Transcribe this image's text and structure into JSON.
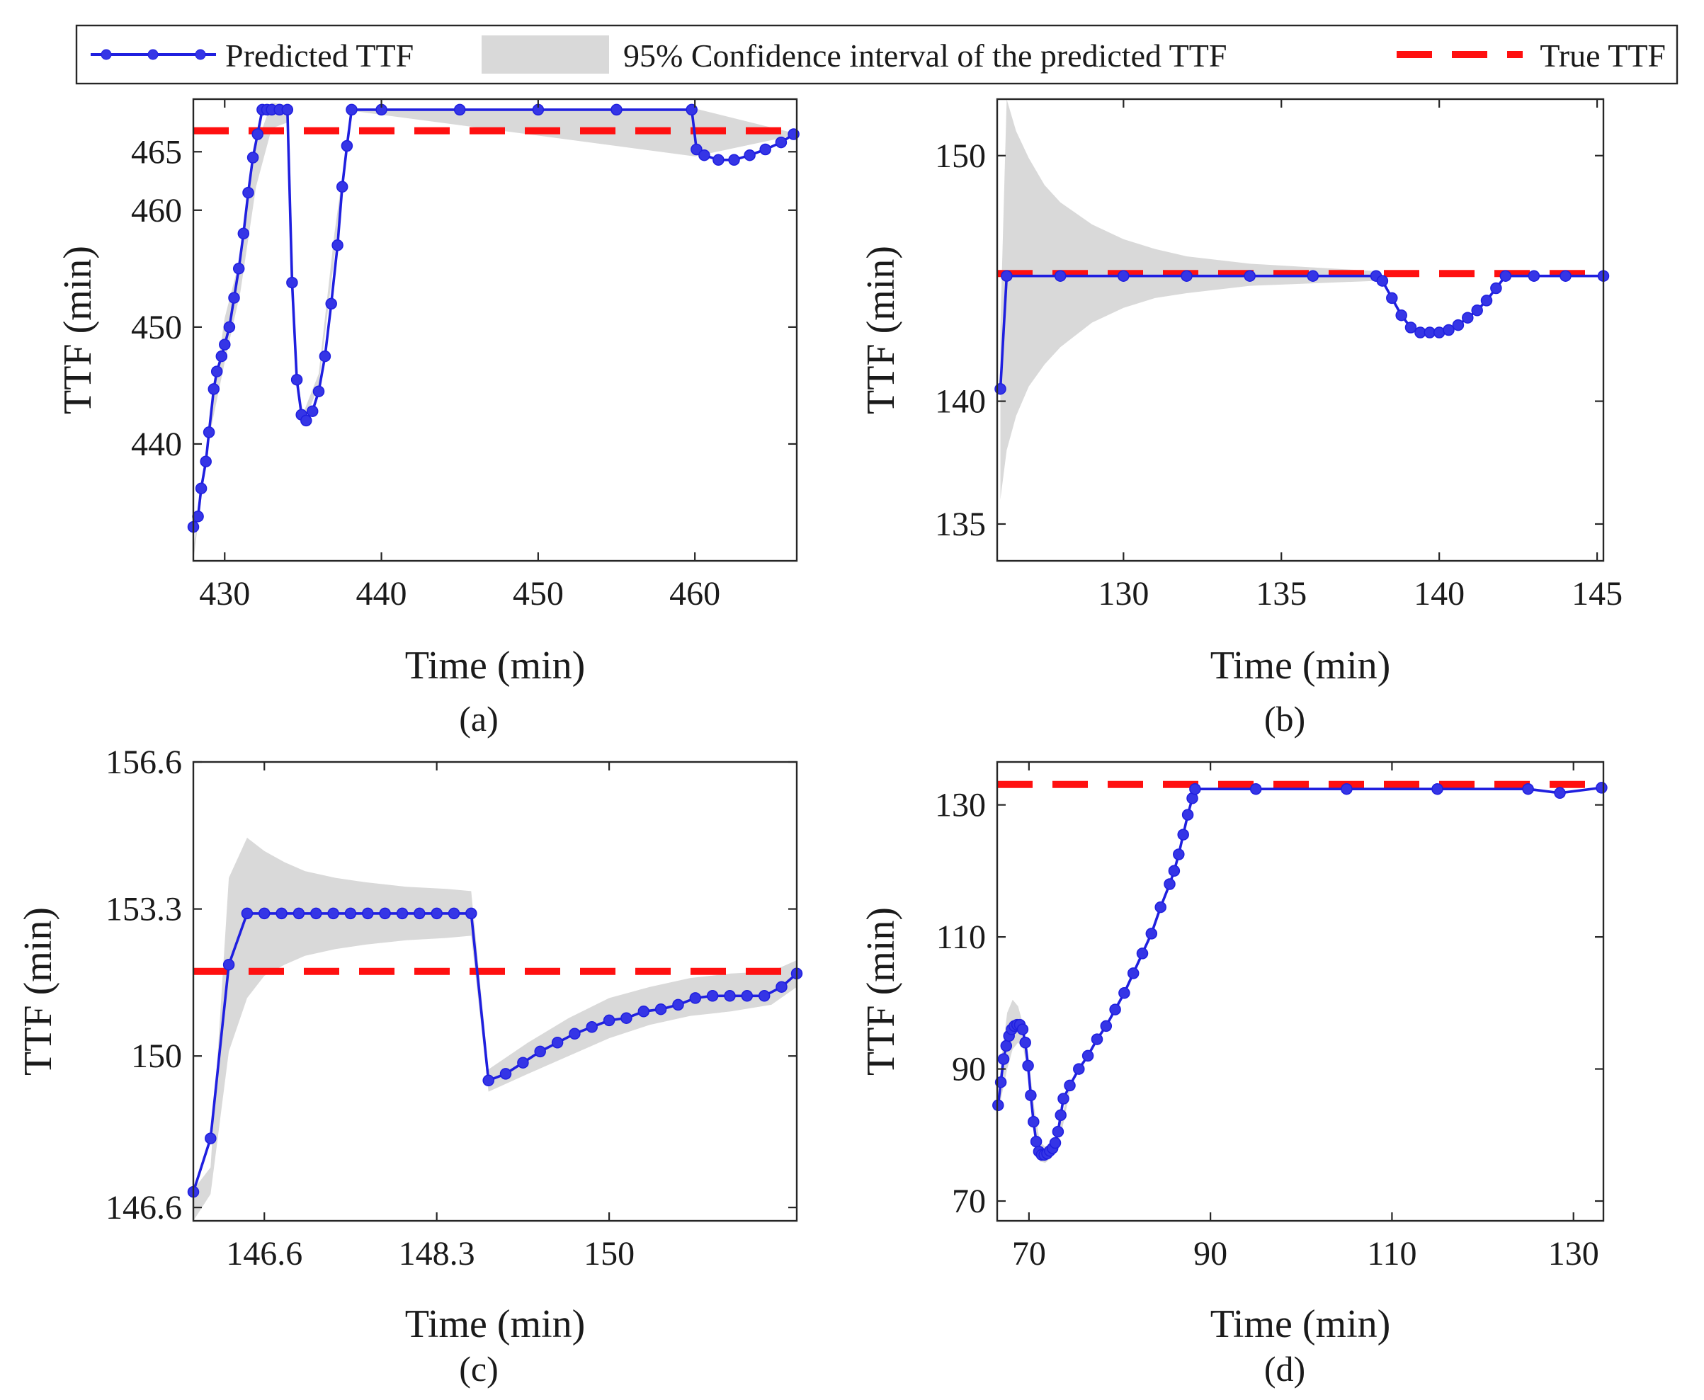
{
  "colors": {
    "predicted": "#1f1fdf",
    "marker_fill": "#3535e6",
    "band": "#d9d9d9",
    "true": "#ff1010",
    "axis": "#262626",
    "text": "#1a1a1a"
  },
  "legend": {
    "predicted": "Predicted TTF",
    "band": "95% Confidence interval of the predicted TTF",
    "true": "True TTF"
  },
  "chart_data": [
    {
      "type": "line",
      "subtitle": "(a)",
      "xlabel": "Time (min)",
      "ylabel": "TTF (min)",
      "xlim": [
        428,
        466.5
      ],
      "ylim": [
        430,
        469.5
      ],
      "xticks": [
        430,
        440,
        450,
        460
      ],
      "yticks": [
        440,
        450,
        460,
        465
      ],
      "true_ttf": 466.8,
      "series": [
        {
          "name": "Predicted TTF",
          "x": [
            428,
            428.3,
            428.5,
            428.8,
            429,
            429.3,
            429.5,
            429.8,
            430,
            430.3,
            430.6,
            430.9,
            431.2,
            431.5,
            431.8,
            432.1,
            432.4,
            432.7,
            433,
            433.5,
            434,
            434.3,
            434.6,
            434.9,
            435.2,
            435.6,
            436,
            436.4,
            436.8,
            437.2,
            437.5,
            437.8,
            438.1,
            440,
            445,
            450,
            455,
            459.8,
            460.1,
            460.6,
            461.5,
            462.5,
            463.5,
            464.5,
            465.5,
            466.3
          ],
          "y": [
            432.9,
            433.8,
            436.2,
            438.5,
            441,
            444.7,
            446.2,
            447.5,
            448.5,
            450,
            452.5,
            455,
            458,
            461.5,
            464.5,
            466.5,
            468.6,
            468.6,
            468.6,
            468.6,
            468.6,
            453.8,
            445.5,
            442.5,
            442,
            442.8,
            444.5,
            447.5,
            452,
            457,
            462,
            465.5,
            468.6,
            468.6,
            468.6,
            468.6,
            468.6,
            468.6,
            465.2,
            464.7,
            464.3,
            464.3,
            464.7,
            465.2,
            465.8,
            466.5
          ]
        }
      ],
      "band": {
        "x": [
          428,
          429,
          430,
          431,
          432,
          433,
          434,
          434.6,
          435,
          436,
          437,
          438.1,
          460,
          466.3
        ],
        "upper": [
          431,
          441.5,
          450.8,
          456,
          465.5,
          469.2,
          469,
          446,
          442.6,
          446,
          458,
          468.7,
          468.7,
          466.6
        ],
        "lower": [
          429.8,
          440.5,
          447,
          453,
          462,
          467,
          467.5,
          444.5,
          441.6,
          445,
          456,
          468.5,
          464.6,
          466.4
        ]
      }
    },
    {
      "type": "line",
      "subtitle": "(b)",
      "xlabel": "Time (min)",
      "ylabel": "TTF (min)",
      "xlim": [
        126,
        145.2
      ],
      "ylim": [
        133.5,
        152.3
      ],
      "xticks": [
        130,
        135,
        140,
        145
      ],
      "yticks": [
        135,
        140,
        150
      ],
      "true_ttf": 145.2,
      "series": [
        {
          "name": "Predicted TTF",
          "x": [
            126.1,
            126.3,
            128,
            130,
            132,
            134,
            136,
            138,
            138.2,
            138.5,
            138.8,
            139.1,
            139.4,
            139.7,
            140,
            140.3,
            140.6,
            140.9,
            141.2,
            141.5,
            141.8,
            142.1,
            143,
            144,
            145.2
          ],
          "y": [
            140.5,
            145.1,
            145.1,
            145.1,
            145.1,
            145.1,
            145.1,
            145.1,
            144.9,
            144.2,
            143.5,
            143.0,
            142.8,
            142.8,
            142.8,
            142.9,
            143.1,
            143.4,
            143.7,
            144.1,
            144.6,
            145.1,
            145.1,
            145.1,
            145.1
          ]
        }
      ],
      "band": {
        "x": [
          126.1,
          126.3,
          126.6,
          127,
          127.5,
          128,
          129,
          130,
          131,
          132,
          134,
          136,
          138,
          138.1
        ],
        "upper": [
          143,
          152.3,
          151,
          149.9,
          148.8,
          148.1,
          147.2,
          146.6,
          146.2,
          145.9,
          145.6,
          145.45,
          145.3,
          145.25
        ],
        "lower": [
          136,
          138,
          139.4,
          140.6,
          141.5,
          142.2,
          143.2,
          143.8,
          144.2,
          144.4,
          144.7,
          144.8,
          144.9,
          144.95
        ]
      }
    },
    {
      "type": "line",
      "subtitle": "(c)",
      "xlabel": "Time (min)",
      "ylabel": "TTF (min)",
      "xlim": [
        145.9,
        151.85
      ],
      "ylim": [
        146.3,
        156.6
      ],
      "xticks": [
        146.6,
        148.3,
        150
      ],
      "xtick_labels": [
        "146.6",
        "148.3",
        "150"
      ],
      "yticks": [
        146.6,
        150,
        153.3,
        156.6
      ],
      "ytick_labels": [
        "146.6",
        "150",
        "153.3",
        "156.6"
      ],
      "true_ttf": 151.9,
      "series": [
        {
          "name": "Predicted TTF",
          "x": [
            145.9,
            146.07,
            146.25,
            146.43,
            146.6,
            146.77,
            146.94,
            147.11,
            147.28,
            147.45,
            147.62,
            147.79,
            147.96,
            148.13,
            148.3,
            148.47,
            148.64,
            148.81,
            148.98,
            149.15,
            149.32,
            149.49,
            149.66,
            149.83,
            150,
            150.17,
            150.34,
            150.51,
            150.68,
            150.85,
            151.02,
            151.19,
            151.36,
            151.53,
            151.7,
            151.85
          ],
          "y": [
            146.95,
            148.15,
            152.05,
            153.2,
            153.2,
            153.2,
            153.2,
            153.2,
            153.2,
            153.2,
            153.2,
            153.2,
            153.2,
            153.2,
            153.2,
            153.2,
            153.2,
            149.45,
            149.6,
            149.85,
            150.1,
            150.3,
            150.5,
            150.65,
            150.8,
            150.85,
            151.0,
            151.05,
            151.15,
            151.3,
            151.35,
            151.35,
            151.35,
            151.35,
            151.55,
            151.85
          ]
        }
      ],
      "band": {
        "x": [
          145.9,
          146.07,
          146.25,
          146.43,
          146.6,
          146.8,
          147.0,
          147.3,
          147.6,
          148.0,
          148.4,
          148.64,
          148.81,
          149.2,
          149.6,
          150.0,
          150.4,
          150.8,
          151.2,
          151.6,
          151.85
        ],
        "upper": [
          147.0,
          147.5,
          154.0,
          154.9,
          154.6,
          154.35,
          154.15,
          154.0,
          153.9,
          153.8,
          153.75,
          153.7,
          149.7,
          150.3,
          150.85,
          151.3,
          151.55,
          151.75,
          151.85,
          151.9,
          152.15
        ],
        "lower": [
          146.3,
          146.9,
          150.1,
          151.3,
          151.8,
          152.05,
          152.25,
          152.4,
          152.5,
          152.6,
          152.65,
          152.7,
          149.2,
          149.6,
          150.0,
          150.4,
          150.7,
          150.9,
          151.0,
          151.15,
          151.55
        ]
      }
    },
    {
      "type": "line",
      "subtitle": "(d)",
      "xlabel": "Time (min)",
      "ylabel": "TTF (min)",
      "xlim": [
        66.5,
        133.3
      ],
      "ylim": [
        67,
        136.5
      ],
      "xticks": [
        70,
        90,
        110,
        130
      ],
      "yticks": [
        70,
        90,
        110,
        130
      ],
      "true_ttf": 133.1,
      "series": [
        {
          "name": "Predicted TTF",
          "x": [
            66.6,
            66.9,
            67.2,
            67.5,
            67.8,
            68.1,
            68.4,
            68.7,
            69.0,
            69.3,
            69.6,
            69.9,
            70.2,
            70.5,
            70.8,
            71.1,
            71.4,
            71.7,
            72.0,
            72.3,
            72.6,
            72.9,
            73.2,
            73.5,
            73.8,
            74.5,
            75.5,
            76.5,
            77.5,
            78.5,
            79.5,
            80.5,
            81.5,
            82.5,
            83.5,
            84.5,
            85.5,
            86.0,
            86.5,
            87.0,
            87.5,
            88.0,
            88.3,
            95,
            105,
            115,
            125,
            128.5,
            133.1
          ],
          "y": [
            84.5,
            88.0,
            91.5,
            93.5,
            95.0,
            96.0,
            96.5,
            96.7,
            96.7,
            96.0,
            94.0,
            90.5,
            86.0,
            82.0,
            79.0,
            77.5,
            77.0,
            77.0,
            77.2,
            77.6,
            78.0,
            78.8,
            80.5,
            83.0,
            85.5,
            87.5,
            90.0,
            92.0,
            94.5,
            96.5,
            99.0,
            101.5,
            104.5,
            107.5,
            110.5,
            114.5,
            118.0,
            120.0,
            122.5,
            125.5,
            128.5,
            131.0,
            132.4,
            132.4,
            132.4,
            132.4,
            132.4,
            131.8,
            132.6
          ]
        }
      ],
      "band": {
        "x": [
          66.6,
          67.0,
          67.6,
          68.2,
          68.8,
          69.4,
          70.0,
          70.6,
          71.2,
          71.8,
          72.4,
          73.0,
          73.6,
          74.2,
          74.5
        ],
        "upper": [
          85.5,
          92.0,
          98.5,
          100.5,
          99.5,
          96.5,
          91.0,
          84.0,
          79.0,
          78.2,
          78.5,
          80.0,
          82.5,
          86.0,
          87.5
        ],
        "lower": [
          83.5,
          86.0,
          90.0,
          93.0,
          94.0,
          93.0,
          88.0,
          80.5,
          76.0,
          75.8,
          76.5,
          78.0,
          80.5,
          84.5,
          86.5
        ]
      }
    }
  ]
}
